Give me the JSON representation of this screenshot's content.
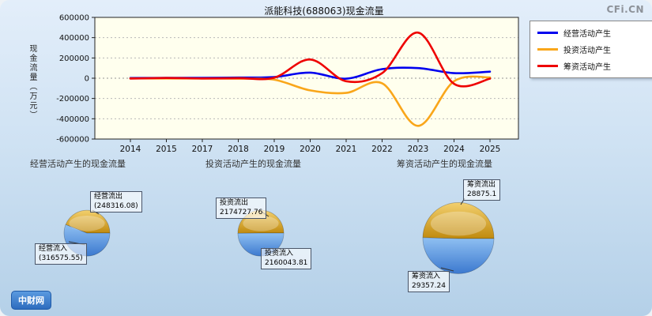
{
  "page": {
    "watermark": "CFi.CN",
    "logo": "中财网"
  },
  "chart_data": [
    {
      "type": "line",
      "title": "派能科技(688063)现金流量",
      "xlabel": "",
      "ylabel": "现金流量（万元）",
      "unit": "万元",
      "ylim": [
        -600000,
        600000
      ],
      "y_ticks": [
        600000,
        400000,
        200000,
        0,
        -200000,
        -400000,
        -600000
      ],
      "x_tick_labels": [
        "2014",
        "2015",
        "2017",
        "2018",
        "2019",
        "2020",
        "2021",
        "2022",
        "2023",
        "2024",
        "2025"
      ],
      "grid": "horizontal-dotted",
      "legend_position": "top-right",
      "series": [
        {
          "name": "经营活动产生",
          "color": "#0000ee",
          "values": [
            2000,
            3000,
            4000,
            6000,
            12000,
            55000,
            -5000,
            90000,
            100000,
            50000,
            65000
          ]
        },
        {
          "name": "投资活动产生",
          "color": "#f9a61a",
          "values": [
            -1500,
            -2500,
            -3000,
            -5000,
            -15000,
            -120000,
            -145000,
            -50000,
            -470000,
            -30000,
            8000
          ]
        },
        {
          "name": "筹资活动产生",
          "color": "#ee0000",
          "values": [
            -3000,
            2000,
            -2000,
            1000,
            5000,
            185000,
            -30000,
            50000,
            450000,
            -55000,
            -5000
          ]
        }
      ]
    },
    {
      "type": "pie",
      "title": "经营活动产生的现金流量",
      "slices": [
        {
          "label": "经营流出",
          "value": 248316.08,
          "display": "(248316.08)",
          "color": "#d8a01d"
        },
        {
          "label": "经营流入",
          "value": 316575.55,
          "display": "(316575.55)",
          "color": "#4a8ad8"
        }
      ]
    },
    {
      "type": "pie",
      "title": "投资活动产生的现金流量",
      "slices": [
        {
          "label": "投资流出",
          "value": 2174727.76,
          "display": "2174727.76",
          "color": "#d8a01d"
        },
        {
          "label": "投资流入",
          "value": 2160043.81,
          "display": "2160043.81",
          "color": "#4a8ad8"
        }
      ]
    },
    {
      "type": "pie",
      "title": "筹资活动产生的现金流量",
      "slices": [
        {
          "label": "筹资流出",
          "value": 28875.1,
          "display": "28875.1",
          "color": "#d8a01d"
        },
        {
          "label": "筹资流入",
          "value": 29357.24,
          "display": "29357.24",
          "color": "#4a8ad8"
        }
      ]
    }
  ]
}
